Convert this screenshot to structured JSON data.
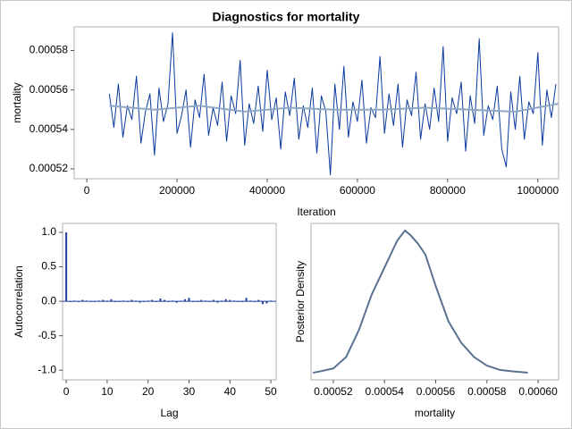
{
  "chart_data": [
    {
      "type": "line",
      "title": "Diagnostics for mortality",
      "xlabel": "Iteration",
      "ylabel": "mortality",
      "xlim": [
        -28000,
        1046000
      ],
      "xticks": [
        0,
        200000,
        400000,
        600000,
        800000,
        1000000
      ],
      "ylim": [
        0.000515,
        0.000592
      ],
      "yticks": [
        0.00052,
        0.00054,
        0.00056,
        0.00058
      ],
      "series": [
        {
          "color": "#0a3a9e",
          "width": 1,
          "x": [
            50000,
            60000,
            70000,
            80000,
            90000,
            100000,
            110000,
            120000,
            130000,
            140000,
            150000,
            160000,
            170000,
            180000,
            190000,
            200000,
            210000,
            220000,
            230000,
            240000,
            250000,
            260000,
            270000,
            280000,
            290000,
            300000,
            310000,
            320000,
            330000,
            340000,
            350000,
            360000,
            370000,
            380000,
            390000,
            400000,
            410000,
            420000,
            430000,
            440000,
            450000,
            460000,
            470000,
            480000,
            490000,
            500000,
            510000,
            520000,
            530000,
            540000,
            550000,
            560000,
            570000,
            580000,
            590000,
            600000,
            610000,
            620000,
            630000,
            640000,
            650000,
            660000,
            670000,
            680000,
            690000,
            700000,
            710000,
            720000,
            730000,
            740000,
            750000,
            760000,
            770000,
            780000,
            790000,
            800000,
            810000,
            820000,
            830000,
            840000,
            850000,
            860000,
            870000,
            880000,
            890000,
            900000,
            910000,
            920000,
            930000,
            940000,
            950000,
            960000,
            970000,
            980000,
            990000,
            1000000,
            1010000,
            1020000,
            1030000,
            1040000
          ],
          "values": [
            0.000558,
            0.000541,
            0.000563,
            0.000536,
            0.000552,
            0.000545,
            0.000567,
            0.000533,
            0.000549,
            0.000558,
            0.000527,
            0.000561,
            0.000544,
            0.000553,
            0.000589,
            0.000538,
            0.000547,
            0.00056,
            0.000531,
            0.000555,
            0.000546,
            0.000568,
            0.000537,
            0.000551,
            0.000542,
            0.000564,
            0.000534,
            0.000557,
            0.000548,
            0.000575,
            0.000532,
            0.000553,
            0.000543,
            0.000562,
            0.000539,
            0.00057,
            0.000545,
            0.000556,
            0.00053,
            0.000559,
            0.000547,
            0.000566,
            0.000535,
            0.000552,
            0.000541,
            0.000561,
            0.000528,
            0.000557,
            0.000549,
            0.000517,
            0.000563,
            0.00054,
            0.000572,
            0.000536,
            0.000554,
            0.000544,
            0.000565,
            0.000533,
            0.000551,
            0.000546,
            0.000577,
            0.000538,
            0.000558,
            0.000542,
            0.000563,
            0.000531,
            0.000555,
            0.000547,
            0.000569,
            0.000535,
            0.000553,
            0.00054,
            0.000561,
            0.000544,
            0.000582,
            0.000534,
            0.000556,
            0.000548,
            0.000564,
            0.000529,
            0.000557,
            0.000543,
            0.000586,
            0.000537,
            0.000552,
            0.000545,
            0.000562,
            0.00053,
            0.000521,
            0.000559,
            0.00054,
            0.000567,
            0.000535,
            0.000554,
            0.000548,
            0.000579,
            0.000532,
            0.00056,
            0.000546,
            0.000563
          ]
        },
        {
          "color": "#8fa6c4",
          "width": 2,
          "x": [
            50000,
            150000,
            250000,
            350000,
            450000,
            550000,
            650000,
            750000,
            850000,
            950000,
            1045000
          ],
          "values": [
            0.000552,
            0.00055,
            0.000552,
            0.000549,
            0.000551,
            0.00055,
            0.00055,
            0.000551,
            0.00055,
            0.000549,
            0.000553
          ]
        }
      ]
    },
    {
      "type": "bar",
      "xlabel": "Lag",
      "ylabel": "Autocorrelation",
      "xlim": [
        -0.9,
        51.3
      ],
      "xticks": [
        0,
        10,
        20,
        30,
        40,
        50
      ],
      "ylim": [
        -1.14,
        1.13
      ],
      "yticks": [
        {
          "value": 1,
          "label": "1.0"
        },
        {
          "value": 0.5,
          "label": "0.5"
        },
        {
          "value": 0,
          "label": "0.0"
        },
        {
          "value": -0.5,
          "label": "-0.5"
        },
        {
          "value": -1,
          "label": "-1.0"
        }
      ],
      "series": [
        {
          "color": "#1f3f9f",
          "x": [
            0,
            1,
            2,
            3,
            4,
            5,
            6,
            7,
            8,
            9,
            10,
            11,
            12,
            13,
            14,
            15,
            16,
            17,
            18,
            19,
            20,
            21,
            22,
            23,
            24,
            25,
            26,
            27,
            28,
            29,
            30,
            31,
            32,
            33,
            34,
            35,
            36,
            37,
            38,
            39,
            40,
            41,
            42,
            43,
            44,
            45,
            46,
            47,
            48,
            49,
            50
          ],
          "values": [
            1,
            0,
            0.01,
            0,
            0.02,
            0.01,
            -0.01,
            0,
            0.01,
            0.02,
            0.01,
            0.03,
            -0.01,
            0,
            0.01,
            -0.01,
            0.02,
            0.01,
            -0.02,
            0,
            0.01,
            0.02,
            -0.01,
            0.04,
            0.02,
            0,
            0.01,
            -0.02,
            0.01,
            0.03,
            0.05,
            0,
            -0.01,
            0.02,
            0.01,
            0,
            0.02,
            -0.02,
            0.01,
            0.03,
            0.02,
            0.01,
            0,
            -0.01,
            0.05,
            0.01,
            0,
            0.02,
            -0.04,
            -0.03,
            0.01
          ]
        }
      ]
    },
    {
      "type": "line",
      "xlabel": "mortality",
      "ylabel": "Posterior Density",
      "xlim": [
        0.0005113,
        0.000608
      ],
      "xticks": [
        0.00052,
        0.00054,
        0.00056,
        0.00058,
        {
          "value": 0.0006,
          "label": "0.00060"
        }
      ],
      "ylim": [
        -0.05,
        1.05
      ],
      "series": [
        {
          "color": "#5a7194",
          "width": 2,
          "x": [
            0.000512,
            0.000515,
            0.00052,
            0.000525,
            0.00053,
            0.000535,
            0.00054,
            0.000545,
            0.000548,
            0.00055,
            0.000553,
            0.000556,
            0.00056,
            0.000565,
            0.00057,
            0.000575,
            0.00058,
            0.000585,
            0.00059,
            0.000596
          ],
          "values": [
            0,
            0.01,
            0.03,
            0.11,
            0.3,
            0.55,
            0.74,
            0.93,
            1,
            0.97,
            0.91,
            0.83,
            0.61,
            0.36,
            0.21,
            0.11,
            0.05,
            0.02,
            0.01,
            0
          ]
        }
      ]
    }
  ]
}
